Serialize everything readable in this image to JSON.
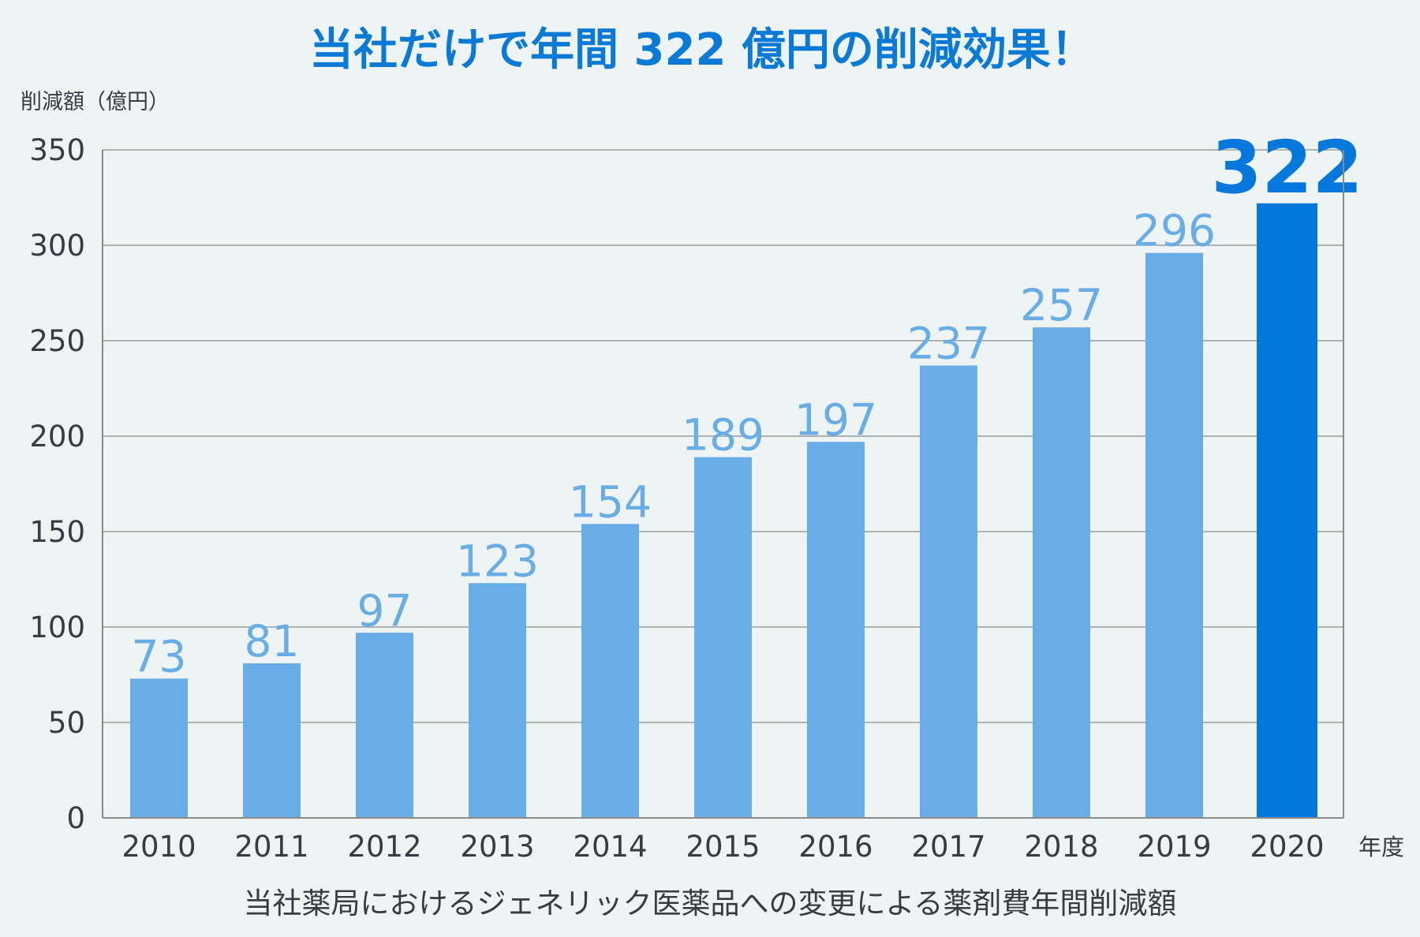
{
  "chart_data": {
    "type": "bar",
    "title": "当社だけで年間 322 億円の削減効果！",
    "ylabel": "削減額（億円）",
    "xlabel": "年度",
    "caption": "当社薬局におけるジェネリック医薬品への変更による薬剤費年間削減額",
    "categories": [
      "2010",
      "2011",
      "2012",
      "2013",
      "2014",
      "2015",
      "2016",
      "2017",
      "2018",
      "2019",
      "2020"
    ],
    "values": [
      73,
      81,
      97,
      123,
      154,
      189,
      197,
      237,
      257,
      296,
      322
    ],
    "value_labels": [
      "73",
      "81",
      "97",
      "123",
      "154",
      "189",
      "197",
      "237",
      "257",
      "296",
      "322"
    ],
    "ylim": [
      0,
      350
    ],
    "yticks": [
      0,
      50,
      100,
      150,
      200,
      250,
      300,
      350
    ],
    "ytick_labels": [
      "0",
      "50",
      "100",
      "150",
      "200",
      "250",
      "300",
      "350"
    ],
    "grid": true,
    "colors": {
      "bar": "#68ade6",
      "highlight_bar": "#0478dc",
      "title": "#0a7ad6",
      "grid": "#8a8a8a"
    }
  }
}
